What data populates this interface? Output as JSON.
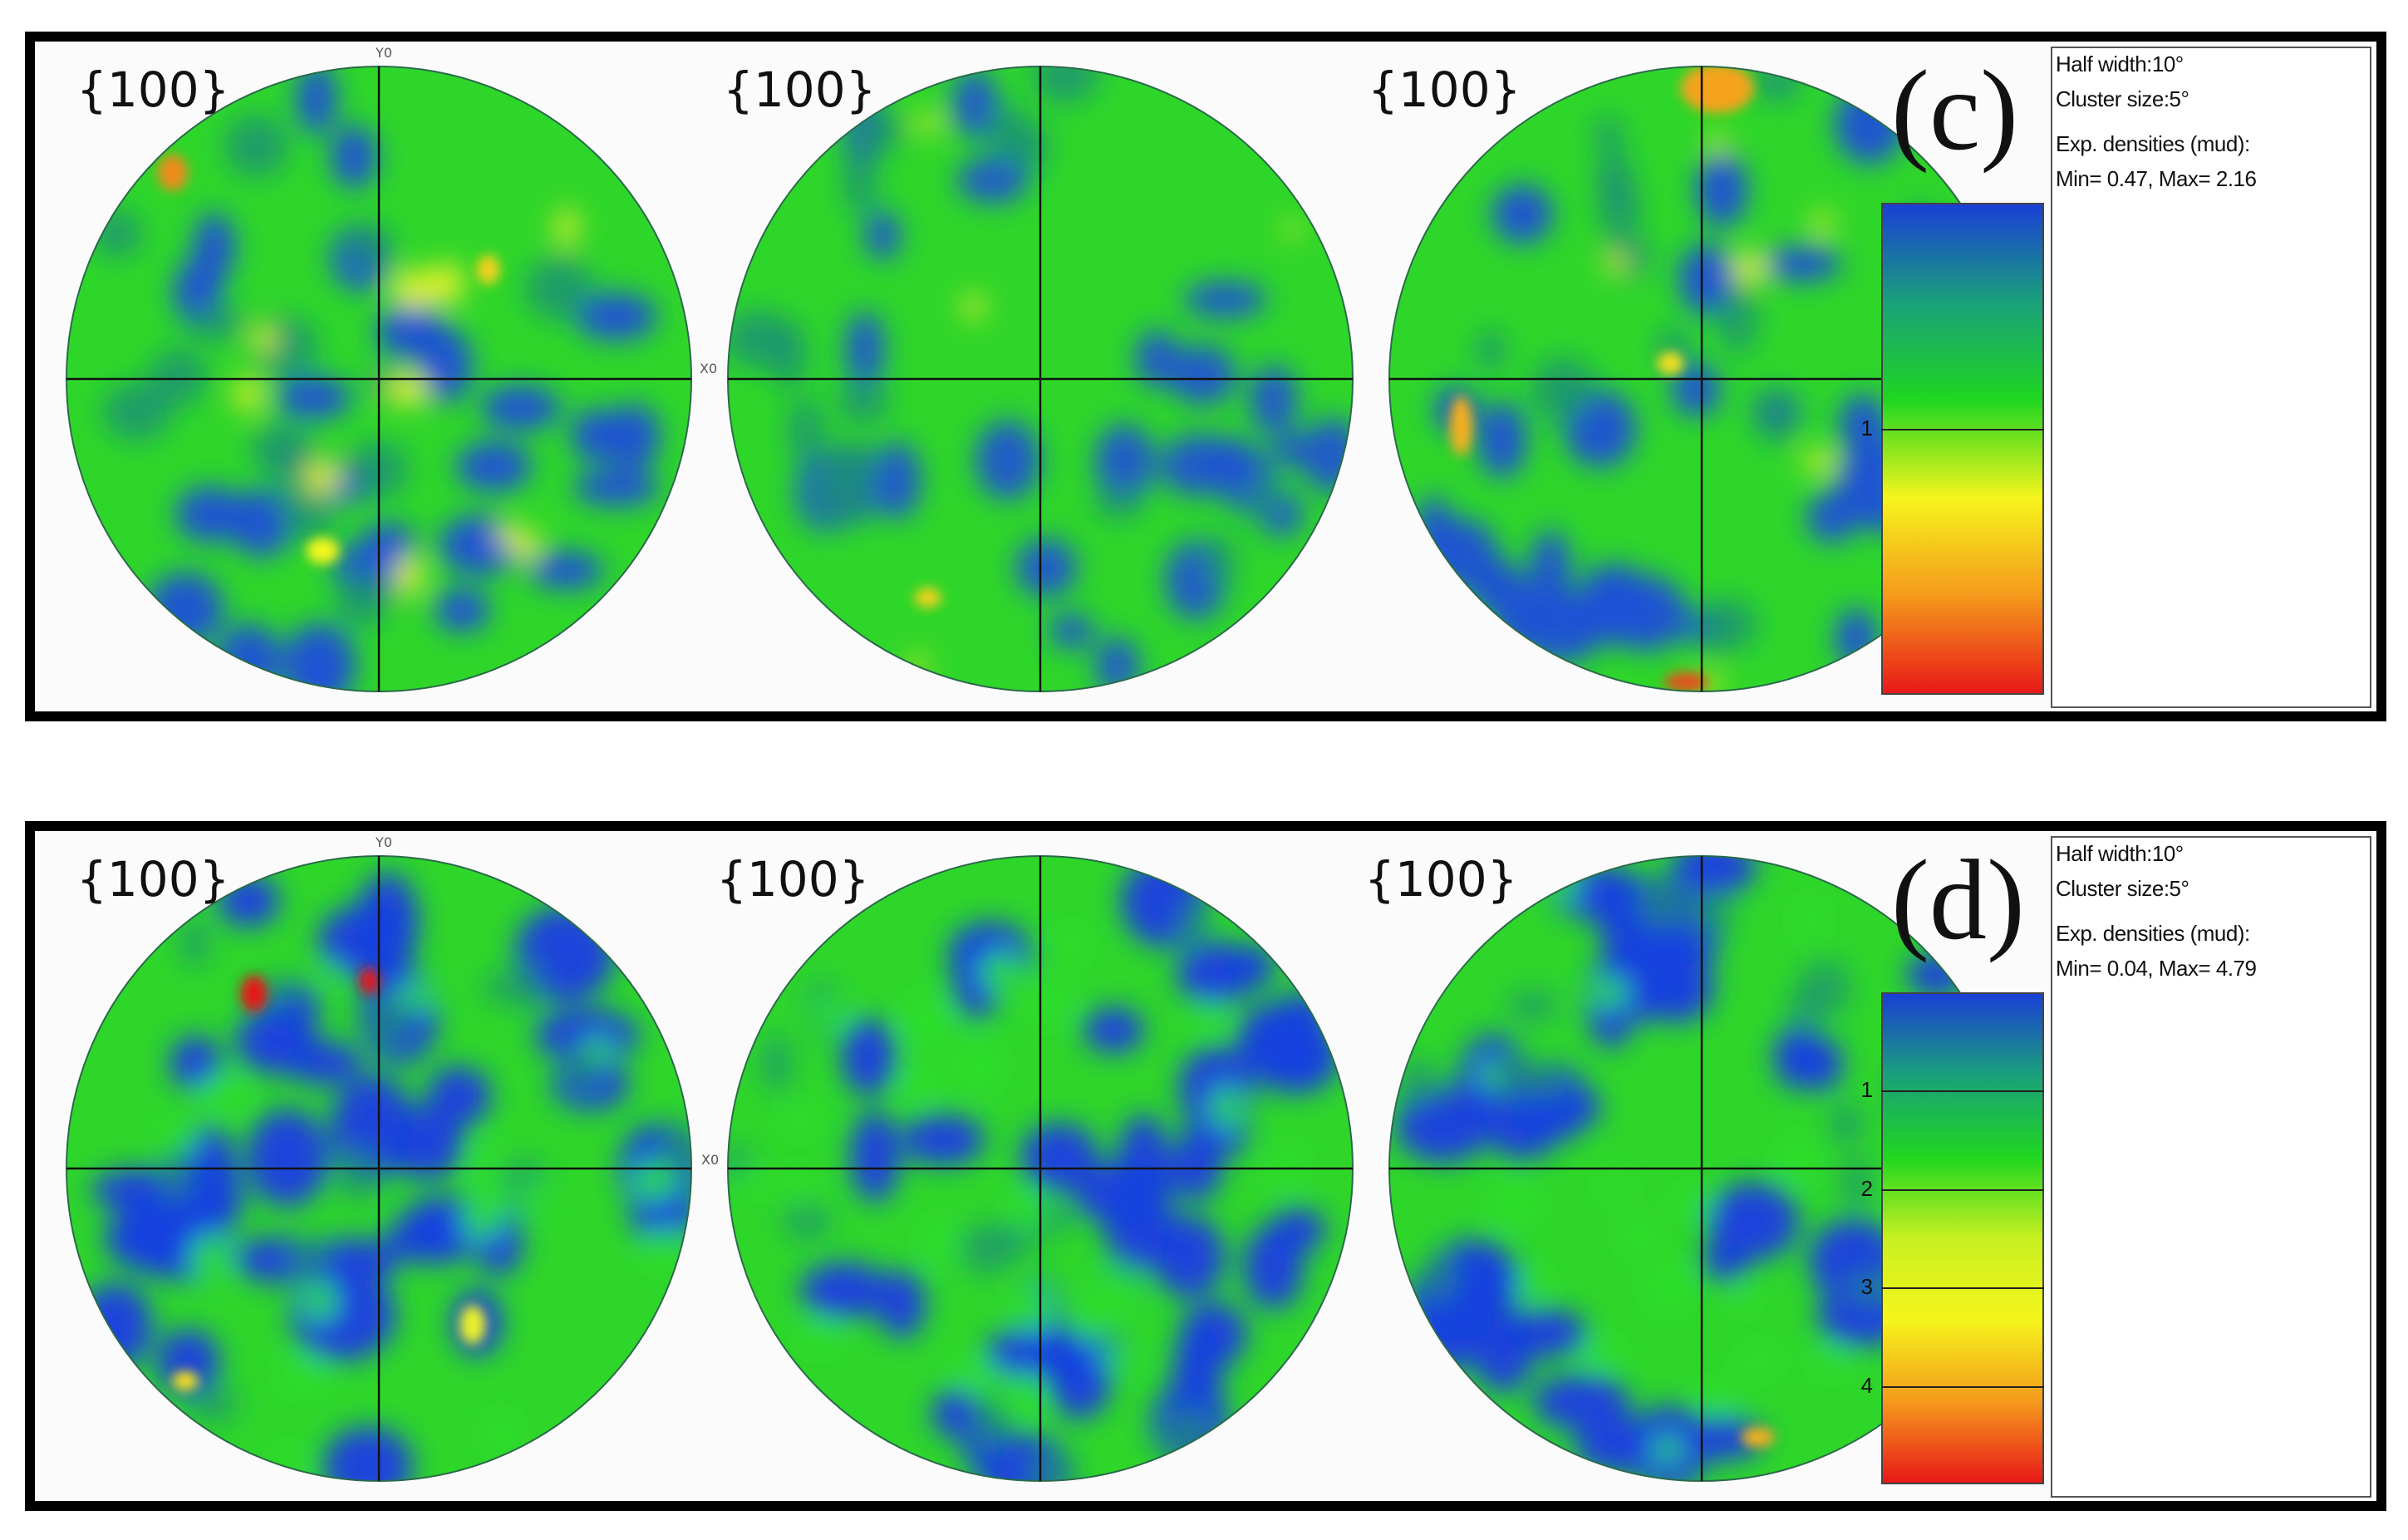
{
  "panels": [
    {
      "id": "c",
      "letter": "(c)",
      "pole_figures": [
        {
          "title": "{100}",
          "palette": "c"
        },
        {
          "title": "{100}",
          "palette": "c"
        },
        {
          "title": "{100}",
          "palette": "c"
        }
      ],
      "axis_labels": {
        "y": "Y0",
        "x": "X0"
      },
      "legend": {
        "half_width": "Half width:10°",
        "cluster_size": "Cluster size:5°",
        "densities_label": "Exp. densities (mud):",
        "min_max": "Min= 0.47, Max= 2.16",
        "ticks": [
          "1"
        ],
        "tick_levels": [
          0.46
        ],
        "colors": [
          "#1a3fd6",
          "#1aa07a",
          "#1fd620",
          "#f5f51c",
          "#f59a1c",
          "#e81818"
        ]
      }
    },
    {
      "id": "d",
      "letter": "(d)",
      "pole_figures": [
        {
          "title": "{100}",
          "palette": "d"
        },
        {
          "title": "{100}",
          "palette": "d"
        },
        {
          "title": "{100}",
          "palette": "d"
        }
      ],
      "axis_labels": {
        "y": "Y0",
        "x": "X0"
      },
      "legend": {
        "half_width": "Half width:10°",
        "cluster_size": "Cluster size:5°",
        "densities_label": "Exp. densities (mud):",
        "min_max": "Min= 0.04, Max= 4.79",
        "ticks": [
          "1",
          "2",
          "3",
          "4"
        ],
        "tick_levels": [
          0.2,
          0.4,
          0.6,
          0.8
        ],
        "colors": [
          "#1a3fd6",
          "#1aa07a",
          "#1fd620",
          "#c8f020",
          "#f5f51c",
          "#f59a1c",
          "#e81818"
        ]
      }
    }
  ]
}
